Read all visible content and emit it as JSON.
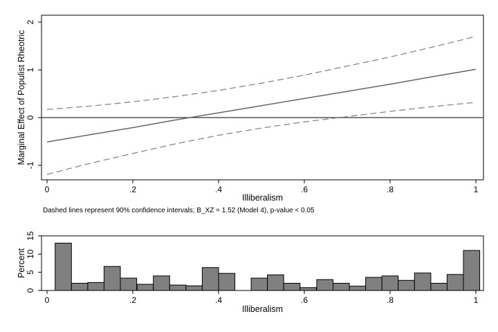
{
  "chart_data": [
    {
      "type": "line",
      "xlabel": "Illiberalism",
      "ylabel": "Marginal Effect of Populist Rheotric",
      "xlim": [
        0,
        1
      ],
      "ylim": [
        -1.3,
        2.1
      ],
      "x_ticks": [
        "0",
        ".2",
        ".4",
        ".6",
        ".8",
        "1"
      ],
      "y_ticks": [
        "-1",
        "0",
        "1",
        "2"
      ],
      "note": "Dashed lines represent 90% confidence intervals; B_XZ = 1.52 (Model 4), p-value < 0.05",
      "reference_line": 0,
      "grid": false,
      "series": [
        {
          "style": "solid",
          "color": "#666666",
          "x": [
            0,
            0.1,
            0.2,
            0.3,
            0.4,
            0.5,
            0.6,
            0.7,
            0.8,
            0.9,
            1
          ],
          "values": [
            -0.51,
            -0.36,
            -0.21,
            -0.05,
            0.1,
            0.25,
            0.4,
            0.55,
            0.7,
            0.86,
            1.01
          ]
        },
        {
          "style": "dashed",
          "color": "#888888",
          "x": [
            0,
            0.1,
            0.2,
            0.3,
            0.4,
            0.5,
            0.6,
            0.7,
            0.8,
            0.9,
            1
          ],
          "values": [
            0.17,
            0.24,
            0.33,
            0.44,
            0.57,
            0.72,
            0.89,
            1.08,
            1.27,
            1.48,
            1.7
          ]
        },
        {
          "style": "dashed",
          "color": "#888888",
          "x": [
            0,
            0.1,
            0.2,
            0.3,
            0.4,
            0.5,
            0.6,
            0.7,
            0.8,
            0.9,
            1
          ],
          "values": [
            -1.19,
            -0.96,
            -0.75,
            -0.55,
            -0.37,
            -0.22,
            -0.09,
            0.02,
            0.13,
            0.23,
            0.32
          ]
        }
      ]
    },
    {
      "type": "bar",
      "xlabel": "Illiberalism",
      "ylabel": "Percent",
      "xlim": [
        0,
        1
      ],
      "ylim": [
        0,
        15
      ],
      "x_ticks": [
        "0",
        ".2",
        ".4",
        ".6",
        ".8",
        "1"
      ],
      "y_ticks": [
        "0",
        "5",
        "10",
        "15"
      ],
      "grid": false,
      "bar_color": "#808080",
      "x": [
        0.038,
        0.076,
        0.114,
        0.152,
        0.19,
        0.229,
        0.267,
        0.305,
        0.343,
        0.381,
        0.419,
        0.495,
        0.533,
        0.571,
        0.609,
        0.648,
        0.686,
        0.724,
        0.762,
        0.8,
        0.838,
        0.876,
        0.914,
        0.952,
        0.99
      ],
      "values": [
        13.0,
        2.0,
        2.2,
        6.6,
        3.4,
        1.7,
        4.0,
        1.5,
        1.3,
        6.3,
        4.7,
        3.4,
        4.3,
        2.0,
        0.8,
        3.0,
        2.0,
        1.2,
        3.6,
        4.0,
        2.8,
        4.8,
        2.0,
        4.4,
        11.0
      ]
    }
  ]
}
